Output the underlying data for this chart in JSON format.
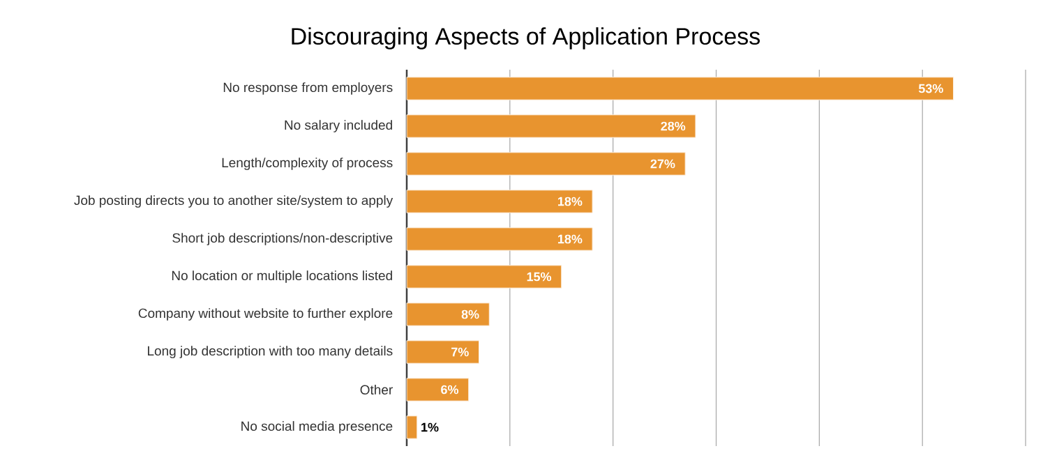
{
  "chart_data": {
    "type": "bar",
    "orientation": "horizontal",
    "title": "Discouraging Aspects of Application Process",
    "categories": [
      "No response from employers",
      "No salary included",
      "Length/complexity of process",
      "Job posting directs you to another site/system to apply",
      "Short job descriptions/non-descriptive",
      "No location or multiple locations listed",
      "Company without website to further explore",
      "Long job description with too many details",
      "Other",
      "No social media presence"
    ],
    "values": [
      53,
      28,
      27,
      18,
      18,
      15,
      8,
      7,
      6,
      1
    ],
    "value_labels": [
      "53%",
      "28%",
      "27%",
      "18%",
      "18%",
      "15%",
      "8%",
      "7%",
      "6%",
      "1%"
    ],
    "color": "#e8942f",
    "xlim": [
      0,
      60
    ],
    "xticks": [
      {
        "value": 0,
        "label": null
      },
      {
        "value": 10,
        "label": null
      },
      {
        "value": 20,
        "label": null
      },
      {
        "value": 30,
        "label": null
      },
      {
        "value": 40,
        "label": null
      },
      {
        "value": 50,
        "label": null
      },
      {
        "value": 60,
        "label": null
      }
    ],
    "grid": "x",
    "tick_labels": "y"
  }
}
